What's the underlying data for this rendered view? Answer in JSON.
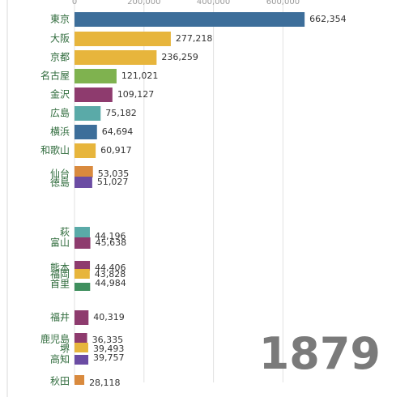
{
  "chart_data": {
    "type": "bar",
    "orientation": "horizontal",
    "year": "1879",
    "xlim": [
      0,
      800000
    ],
    "xticks": [
      {
        "value": 0,
        "label": "0"
      },
      {
        "value": 200000,
        "label": "200,000"
      },
      {
        "value": 400000,
        "label": "400,000"
      },
      {
        "value": 600000,
        "label": "600,000"
      }
    ],
    "grid": true,
    "bars": [
      {
        "label": "東京",
        "value": 662354,
        "value_label": "662,354",
        "color": "#3d6e9a"
      },
      {
        "label": "大阪",
        "value": 277218,
        "value_label": "277,218",
        "color": "#e7b53c"
      },
      {
        "label": "京都",
        "value": 236259,
        "value_label": "236,259",
        "color": "#e7b53c"
      },
      {
        "label": "名古屋",
        "value": 121021,
        "value_label": "121,021",
        "color": "#7fb24f"
      },
      {
        "label": "金沢",
        "value": 109127,
        "value_label": "109,127",
        "color": "#8e3b6e"
      },
      {
        "label": "広島",
        "value": 75182,
        "value_label": "75,182",
        "color": "#5aaaa8"
      },
      {
        "label": "横浜",
        "value": 64694,
        "value_label": "64,694",
        "color": "#3d6e9a"
      },
      {
        "label": "和歌山",
        "value": 60917,
        "value_label": "60,917",
        "color": "#e7b53c"
      },
      {
        "label": "仙台",
        "value": 53035,
        "value_label": "53,035",
        "color": "#d98a3e"
      },
      {
        "label": "徳島",
        "value": 51027,
        "value_label": "51,027",
        "color": "#6b4ca3"
      },
      {
        "label": "萩",
        "value": 44196,
        "value_label": "44,196",
        "color": "#5aaaa8"
      },
      {
        "label": "富山",
        "value": 45638,
        "value_label": "45,638",
        "color": "#8e3b6e"
      },
      {
        "label": "熊本",
        "value": 44406,
        "value_label": "44,406",
        "color": "#8e3b6e"
      },
      {
        "label": "福岡",
        "value": 43828,
        "value_label": "43,828",
        "color": "#e7b53c"
      },
      {
        "label": "首里",
        "value": 44984,
        "value_label": "44,984",
        "color": "#3f8f5e"
      },
      {
        "label": "福井",
        "value": 40319,
        "value_label": "40,319",
        "color": "#8e3b6e"
      },
      {
        "label": "鹿児島",
        "value": 36335,
        "value_label": "36,335",
        "color": "#8e3b6e"
      },
      {
        "label": "堺",
        "value": 39493,
        "value_label": "39,493",
        "color": "#e7b53c"
      },
      {
        "label": "高知",
        "value": 39757,
        "value_label": "39,757",
        "color": "#6b4ca3"
      },
      {
        "label": "秋田",
        "value": 28118,
        "value_label": "28,118",
        "color": "#d98a3e"
      }
    ]
  }
}
